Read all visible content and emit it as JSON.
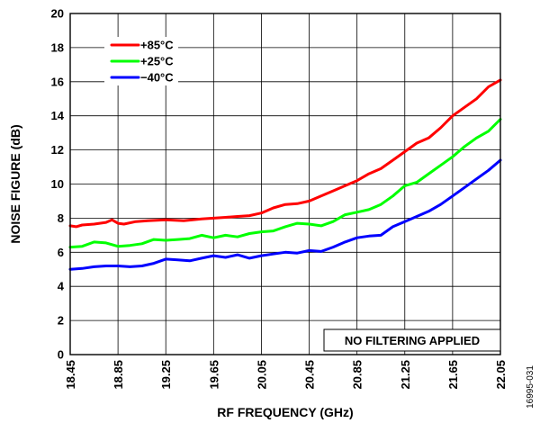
{
  "chart_data": {
    "type": "line",
    "xlabel": "RF FREQUENCY (GHz)",
    "ylabel": "NOISE FIGURE (dB)",
    "xlim": [
      18.45,
      22.05
    ],
    "ylim": [
      0,
      20
    ],
    "x_ticks": [
      "18.45",
      "18.85",
      "19.25",
      "19.65",
      "20.05",
      "20.45",
      "20.85",
      "21.25",
      "21.65",
      "22.05"
    ],
    "y_ticks": [
      "0",
      "2",
      "4",
      "6",
      "8",
      "10",
      "12",
      "14",
      "16",
      "18",
      "20"
    ],
    "grid": true,
    "legend_position": "top-left",
    "annotation": "NO FILTERING APPLIED",
    "figure_id": "16995-031",
    "series": [
      {
        "name": "+85°C",
        "color": "#ff0000",
        "x": [
          18.45,
          18.5,
          18.55,
          18.65,
          18.75,
          18.8,
          18.85,
          18.9,
          19.0,
          19.1,
          19.25,
          19.4,
          19.55,
          19.65,
          19.75,
          19.85,
          19.95,
          20.05,
          20.15,
          20.25,
          20.35,
          20.45,
          20.55,
          20.65,
          20.75,
          20.85,
          20.95,
          21.05,
          21.15,
          21.25,
          21.35,
          21.45,
          21.55,
          21.65,
          21.75,
          21.85,
          21.95,
          22.05
        ],
        "values": [
          7.55,
          7.5,
          7.6,
          7.65,
          7.75,
          7.9,
          7.7,
          7.65,
          7.8,
          7.85,
          7.9,
          7.85,
          7.95,
          8.0,
          8.05,
          8.1,
          8.15,
          8.3,
          8.6,
          8.8,
          8.85,
          9.0,
          9.3,
          9.6,
          9.9,
          10.2,
          10.6,
          10.9,
          11.4,
          11.9,
          12.4,
          12.7,
          13.3,
          14.0,
          14.5,
          15.0,
          15.7,
          16.1
        ]
      },
      {
        "name": "+25°C",
        "color": "#00ff00",
        "x": [
          18.45,
          18.55,
          18.65,
          18.75,
          18.85,
          18.95,
          19.05,
          19.15,
          19.25,
          19.35,
          19.45,
          19.55,
          19.65,
          19.75,
          19.85,
          19.95,
          20.05,
          20.15,
          20.25,
          20.35,
          20.45,
          20.55,
          20.65,
          20.75,
          20.85,
          20.95,
          21.05,
          21.15,
          21.25,
          21.35,
          21.45,
          21.55,
          21.65,
          21.75,
          21.85,
          21.95,
          22.05
        ],
        "values": [
          6.3,
          6.35,
          6.6,
          6.55,
          6.35,
          6.4,
          6.5,
          6.75,
          6.7,
          6.75,
          6.8,
          7.0,
          6.85,
          7.0,
          6.9,
          7.1,
          7.2,
          7.25,
          7.5,
          7.7,
          7.65,
          7.55,
          7.8,
          8.2,
          8.35,
          8.5,
          8.8,
          9.3,
          9.9,
          10.1,
          10.6,
          11.1,
          11.6,
          12.2,
          12.7,
          13.1,
          13.8
        ]
      },
      {
        "name": "−40°C",
        "color": "#0000ff",
        "x": [
          18.45,
          18.55,
          18.65,
          18.75,
          18.85,
          18.95,
          19.05,
          19.15,
          19.25,
          19.35,
          19.45,
          19.55,
          19.65,
          19.75,
          19.85,
          19.95,
          20.05,
          20.15,
          20.25,
          20.35,
          20.45,
          20.55,
          20.65,
          20.75,
          20.85,
          20.95,
          21.05,
          21.15,
          21.25,
          21.35,
          21.45,
          21.55,
          21.65,
          21.75,
          21.85,
          21.95,
          22.05
        ],
        "values": [
          5.0,
          5.05,
          5.15,
          5.2,
          5.2,
          5.15,
          5.2,
          5.35,
          5.6,
          5.55,
          5.5,
          5.65,
          5.8,
          5.7,
          5.85,
          5.65,
          5.8,
          5.9,
          6.0,
          5.95,
          6.1,
          6.05,
          6.3,
          6.6,
          6.85,
          6.95,
          7.0,
          7.5,
          7.8,
          8.1,
          8.4,
          8.8,
          9.3,
          9.8,
          10.3,
          10.8,
          11.4
        ]
      }
    ]
  }
}
